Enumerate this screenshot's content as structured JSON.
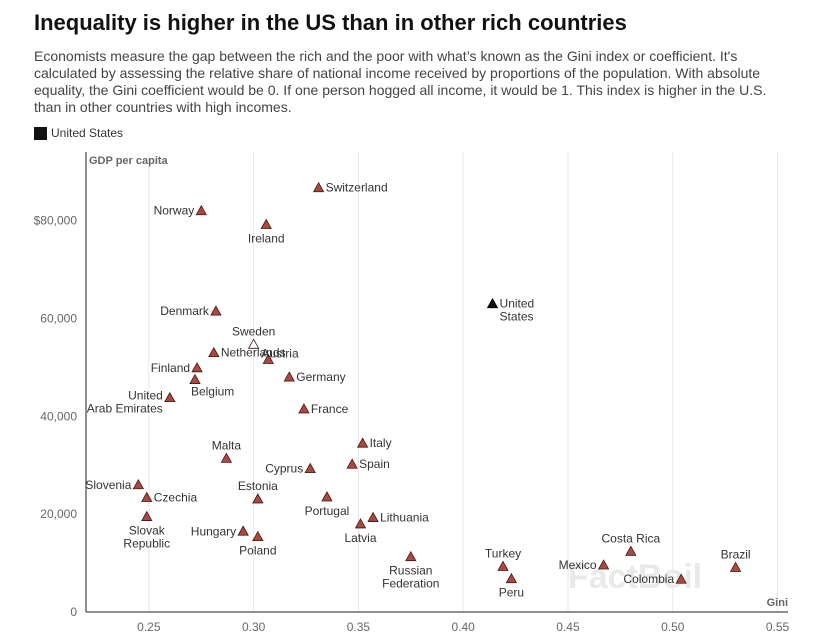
{
  "header": {
    "title": "Inequality is higher in the US than in other rich countries",
    "subtitle": "Economists measure the gap between the rich and the poor with what’s known as the Gini index or coefficient. It's calculated by assessing the relative share of national income received by proportions of the population. With absolute equality, the Gini coefficient would be 0. If one person hogged all income, it would be 1. This index is higher in the U.S. than in other countries with high incomes."
  },
  "legend": {
    "label": "United States",
    "color": "#111111"
  },
  "watermark": "FactBoil",
  "chart_data": {
    "type": "scatter",
    "xlabel": "Gini",
    "ylabel": "GDP per capita",
    "xlim": [
      0.22,
      0.555
    ],
    "ylim": [
      0,
      94000
    ],
    "x_ticks": [
      0.25,
      0.3,
      0.35,
      0.4,
      0.45,
      0.5,
      0.55
    ],
    "x_tick_labels": [
      "0.25",
      "0.30",
      "0.35",
      "0.40",
      "0.45",
      "0.50",
      "0.55"
    ],
    "y_ticks": [
      0,
      20000,
      40000,
      60000,
      80000
    ],
    "y_tick_labels": [
      "0",
      "20,000",
      "40,000",
      "60,000",
      "$80,000"
    ],
    "grid": "vertical",
    "colors": {
      "other": "#b0473d",
      "us": "#111111"
    },
    "points": [
      {
        "label": "Switzerland",
        "x": 0.331,
        "y": 86700,
        "pos": "right"
      },
      {
        "label": "Norway",
        "x": 0.275,
        "y": 82000,
        "pos": "left"
      },
      {
        "label": "Ireland",
        "x": 0.306,
        "y": 79200,
        "pos": "below"
      },
      {
        "label": "United\nStates",
        "x": 0.414,
        "y": 63000,
        "pos": "right",
        "us": true
      },
      {
        "label": "Denmark",
        "x": 0.282,
        "y": 61500,
        "pos": "left"
      },
      {
        "label": "Sweden",
        "x": 0.3,
        "y": 54700,
        "pos": "above",
        "hollow": true
      },
      {
        "label": "Austria",
        "x": 0.307,
        "y": 51600,
        "pos": "above-right"
      },
      {
        "label": "Netherlands",
        "x": 0.281,
        "y": 53000,
        "pos": "right"
      },
      {
        "label": "Finland",
        "x": 0.273,
        "y": 49900,
        "pos": "left"
      },
      {
        "label": "Belgium",
        "x": 0.272,
        "y": 47500,
        "pos": "below-right"
      },
      {
        "label": "United\nArab Emirates",
        "x": 0.26,
        "y": 43800,
        "pos": "left"
      },
      {
        "label": "Germany",
        "x": 0.317,
        "y": 48000,
        "pos": "right"
      },
      {
        "label": "France",
        "x": 0.324,
        "y": 41500,
        "pos": "right"
      },
      {
        "label": "Italy",
        "x": 0.352,
        "y": 34500,
        "pos": "right"
      },
      {
        "label": "Malta",
        "x": 0.287,
        "y": 31400,
        "pos": "above"
      },
      {
        "label": "Spain",
        "x": 0.347,
        "y": 30200,
        "pos": "right"
      },
      {
        "label": "Cyprus",
        "x": 0.327,
        "y": 29300,
        "pos": "left"
      },
      {
        "label": "Slovenia",
        "x": 0.245,
        "y": 26000,
        "pos": "left"
      },
      {
        "label": "Czechia",
        "x": 0.249,
        "y": 23400,
        "pos": "right"
      },
      {
        "label": "Estonia",
        "x": 0.302,
        "y": 23100,
        "pos": "above"
      },
      {
        "label": "Portugal",
        "x": 0.335,
        "y": 23500,
        "pos": "below"
      },
      {
        "label": "Lithuania",
        "x": 0.357,
        "y": 19300,
        "pos": "right"
      },
      {
        "label": "Latvia",
        "x": 0.351,
        "y": 18000,
        "pos": "below"
      },
      {
        "label": "Slovak\nRepublic",
        "x": 0.249,
        "y": 19500,
        "pos": "below"
      },
      {
        "label": "Hungary",
        "x": 0.295,
        "y": 16500,
        "pos": "left"
      },
      {
        "label": "Poland",
        "x": 0.302,
        "y": 15400,
        "pos": "below"
      },
      {
        "label": "Russian\nFederation",
        "x": 0.375,
        "y": 11300,
        "pos": "below"
      },
      {
        "label": "Costa Rica",
        "x": 0.48,
        "y": 12400,
        "pos": "above"
      },
      {
        "label": "Brazil",
        "x": 0.53,
        "y": 9100,
        "pos": "above"
      },
      {
        "label": "Turkey",
        "x": 0.419,
        "y": 9300,
        "pos": "above"
      },
      {
        "label": "Mexico",
        "x": 0.467,
        "y": 9600,
        "pos": "left"
      },
      {
        "label": "Colombia",
        "x": 0.504,
        "y": 6700,
        "pos": "left"
      },
      {
        "label": "Peru",
        "x": 0.423,
        "y": 6800,
        "pos": "below"
      }
    ]
  }
}
